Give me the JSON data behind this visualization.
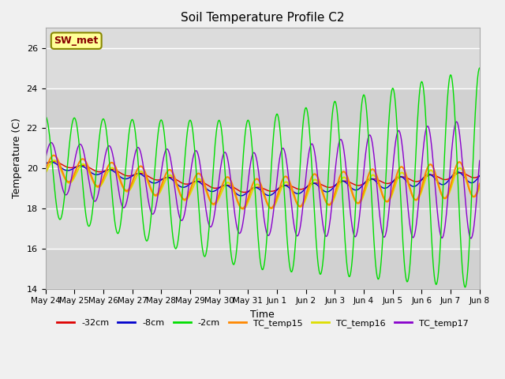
{
  "title": "Soil Temperature Profile C2",
  "xlabel": "Time",
  "ylabel": "Temperature (C)",
  "ylim": [
    14,
    27
  ],
  "yticks": [
    14,
    16,
    18,
    20,
    22,
    24,
    26
  ],
  "date_labels": [
    "May 24",
    "May 25",
    "May 26",
    "May 27",
    "May 28",
    "May 29",
    "May 30",
    "May 31",
    "Jun 1",
    "Jun 2",
    "Jun 3",
    "Jun 4",
    "Jun 5",
    "Jun 6",
    "Jun 7",
    "Jun 8"
  ],
  "n_days": 15,
  "pts_per_day": 48,
  "background_color": "#f0f0f0",
  "plot_bg_color": "#dcdcdc",
  "annotation_text": "SW_met",
  "annotation_bg": "#ffff99",
  "annotation_fg": "#880000",
  "line_colors": {
    "depth_32cm": "#dd0000",
    "depth_8cm": "#0000cc",
    "depth_2cm": "#00dd00",
    "TC_temp15": "#ff8800",
    "TC_temp16": "#dddd00",
    "TC_temp17": "#8800cc"
  },
  "legend_labels": [
    "-32cm",
    "-8cm",
    "-2cm",
    "TC_temp15",
    "TC_temp16",
    "TC_temp17"
  ]
}
